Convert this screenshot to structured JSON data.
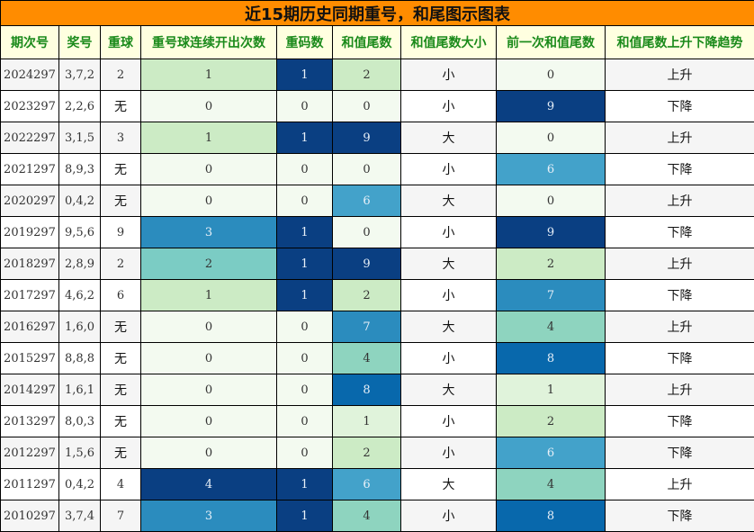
{
  "title": "近15期历史同期重号，和尾图示图表",
  "chart_data": {
    "type": "table",
    "columns": [
      "期次号",
      "奖号",
      "重球",
      "重号球连续开出次数",
      "重码数",
      "和值尾数",
      "和值尾数大小",
      "前一次和值尾数",
      "和值尾数上升下降趋势"
    ],
    "heatmap_columns": [
      3,
      4,
      5,
      7
    ],
    "colorscale": {
      "0": "#f3faf0",
      "1": "#ccebc5",
      "2": "#ccebc5",
      "3": "#2b8cbe",
      "4": "#084081"
    },
    "colorscale_count": {
      "0": "#f3faf0",
      "1": "#ccebc5",
      "2": "#7bccc4",
      "3": "#2b8cbe",
      "4": "#0a3f82"
    },
    "colorscale_repeat": {
      "0": "#f3faf0",
      "1": "#0a3f82"
    },
    "colorscale_tail": {
      "0": "#f3faf0",
      "1": "#e0f3db",
      "2": "#ccebc5",
      "4": "#8ed4bf",
      "6": "#43a2ca",
      "7": "#2b8cbe",
      "8": "#0868ac",
      "9": "#0a3f82"
    },
    "rows": [
      [
        "2024297",
        "3,7,2",
        "2",
        "1",
        "1",
        "2",
        "小",
        "0",
        "上升"
      ],
      [
        "2023297",
        "2,2,6",
        "无",
        "0",
        "0",
        "0",
        "小",
        "9",
        "下降"
      ],
      [
        "2022297",
        "3,1,5",
        "3",
        "1",
        "1",
        "9",
        "大",
        "0",
        "上升"
      ],
      [
        "2021297",
        "8,9,3",
        "无",
        "0",
        "0",
        "0",
        "小",
        "6",
        "下降"
      ],
      [
        "2020297",
        "0,4,2",
        "无",
        "0",
        "0",
        "6",
        "大",
        "0",
        "上升"
      ],
      [
        "2019297",
        "9,5,6",
        "9",
        "3",
        "1",
        "0",
        "小",
        "9",
        "下降"
      ],
      [
        "2018297",
        "2,8,9",
        "2",
        "2",
        "1",
        "9",
        "大",
        "2",
        "上升"
      ],
      [
        "2017297",
        "4,6,2",
        "6",
        "1",
        "1",
        "2",
        "小",
        "7",
        "下降"
      ],
      [
        "2016297",
        "1,6,0",
        "无",
        "0",
        "0",
        "7",
        "大",
        "4",
        "上升"
      ],
      [
        "2015297",
        "8,8,8",
        "无",
        "0",
        "0",
        "4",
        "小",
        "8",
        "下降"
      ],
      [
        "2014297",
        "1,6,1",
        "无",
        "0",
        "0",
        "8",
        "大",
        "1",
        "上升"
      ],
      [
        "2013297",
        "8,0,3",
        "无",
        "0",
        "0",
        "1",
        "小",
        "2",
        "下降"
      ],
      [
        "2012297",
        "1,5,6",
        "无",
        "0",
        "0",
        "2",
        "小",
        "6",
        "下降"
      ],
      [
        "2011297",
        "0,4,2",
        "4",
        "4",
        "1",
        "6",
        "大",
        "4",
        "上升"
      ],
      [
        "2010297",
        "3,7,4",
        "7",
        "3",
        "1",
        "4",
        "小",
        "8",
        "下降"
      ]
    ]
  }
}
